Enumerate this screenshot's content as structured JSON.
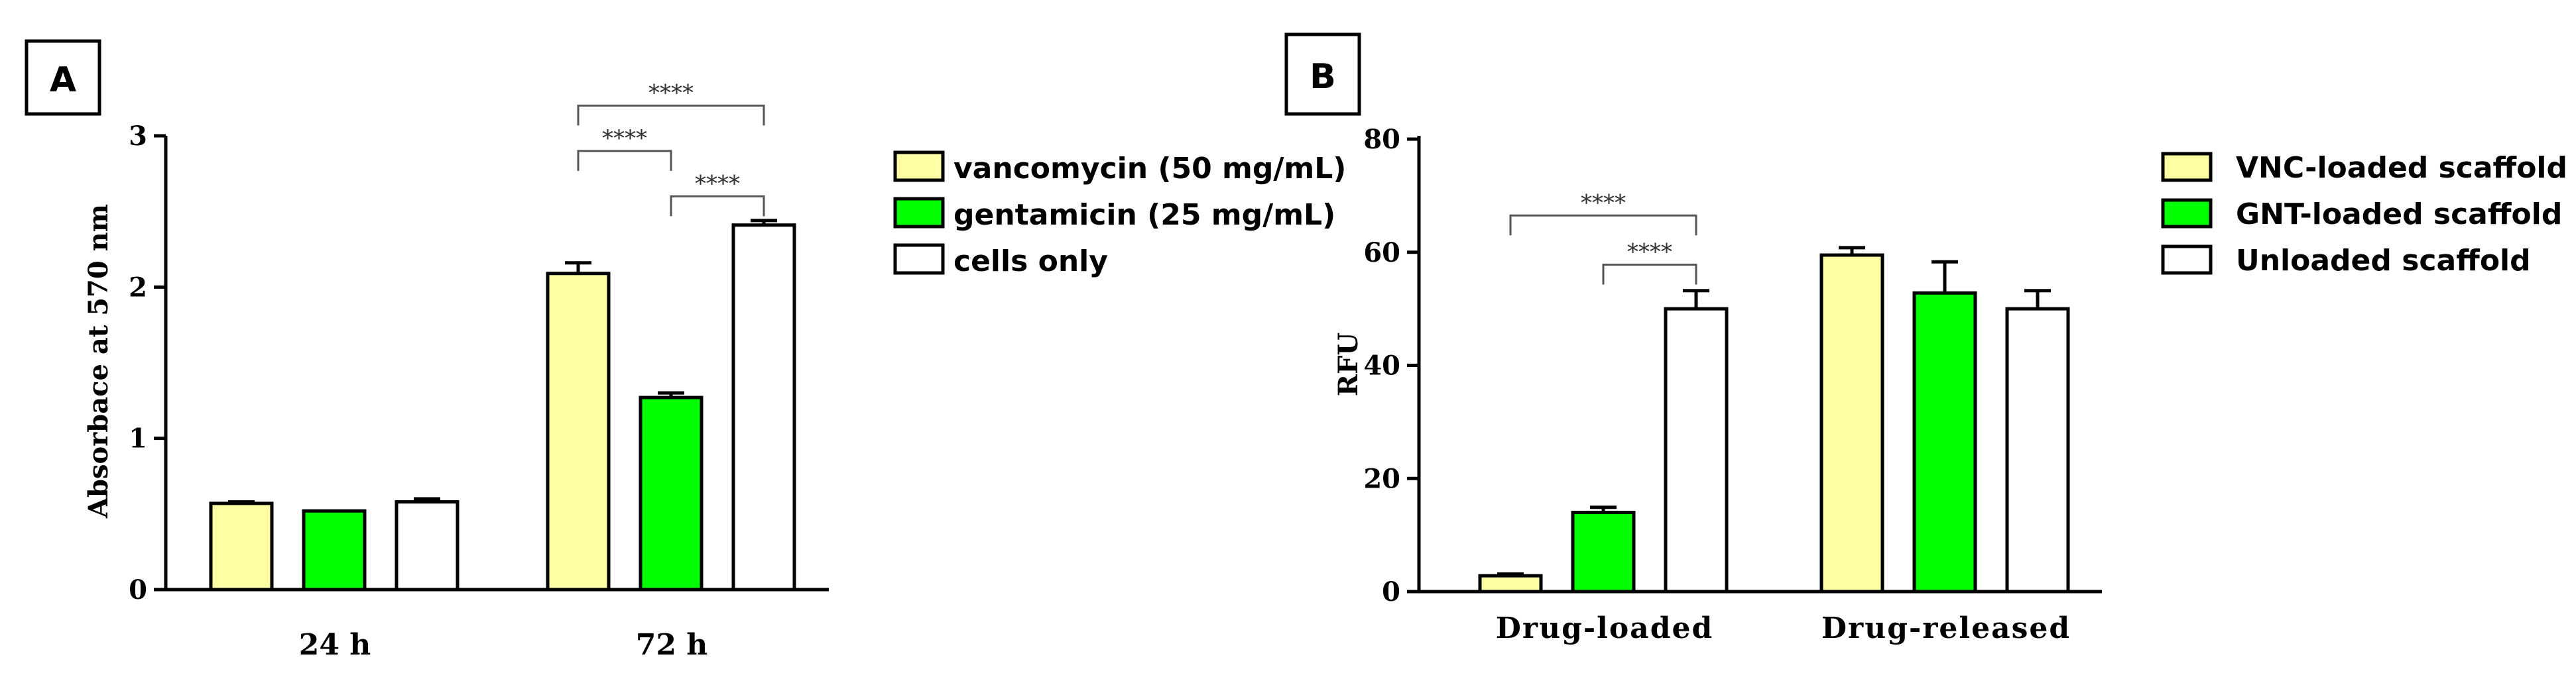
{
  "colors": {
    "yellow": "#FFFFA3",
    "green": "#00FF00",
    "white": "#FFFFFF",
    "stroke": "#000000",
    "bracket": "#555555"
  },
  "chart_data": [
    {
      "type": "bar",
      "panel_label": "A",
      "title": "",
      "xlabel": "",
      "ylabel": "Absorbace at 570 nm",
      "ylim": [
        0,
        3
      ],
      "yticks": [
        "0",
        "1",
        "2",
        "3"
      ],
      "categories": [
        "24 h",
        "72 h"
      ],
      "series": [
        {
          "name": "vancomycin (50 mg/mL)",
          "color": "#FFFFA3",
          "values": [
            0.57,
            2.09
          ],
          "errors": [
            0.01,
            0.07
          ]
        },
        {
          "name": "gentamicin (25 mg/mL)",
          "color": "#00FF00",
          "values": [
            0.52,
            1.27
          ],
          "errors": [
            0.0,
            0.03
          ]
        },
        {
          "name": "cells only",
          "color": "#FFFFFF",
          "values": [
            0.58,
            2.41
          ],
          "errors": [
            0.02,
            0.03
          ]
        }
      ],
      "legend_position": "right",
      "significance": [
        {
          "category": 1,
          "from_series": 0,
          "to_series": 2,
          "label": "****",
          "level": 3.2
        },
        {
          "category": 1,
          "from_series": 0,
          "to_series": 1,
          "label": "****",
          "level": 2.9
        },
        {
          "category": 1,
          "from_series": 1,
          "to_series": 2,
          "label": "****",
          "level": 2.6
        }
      ]
    },
    {
      "type": "bar",
      "panel_label": "B",
      "title": "",
      "xlabel": "",
      "ylabel": "RFU",
      "ylim": [
        0,
        80
      ],
      "yticks": [
        "0",
        "20",
        "40",
        "60",
        "80"
      ],
      "categories": [
        "Drug-loaded",
        "Drug-released"
      ],
      "series": [
        {
          "name": "VNC-loaded scaffold",
          "color": "#FFFFA3",
          "values": [
            2.8,
            59.5
          ],
          "errors": [
            0.3,
            1.3
          ]
        },
        {
          "name": "GNT-loaded scaffold",
          "color": "#00FF00",
          "values": [
            14.0,
            52.8
          ],
          "errors": [
            0.9,
            5.5
          ]
        },
        {
          "name": "Unloaded scaffold",
          "color": "#FFFFFF",
          "values": [
            50.0,
            50.0
          ],
          "errors": [
            3.2,
            3.2
          ]
        }
      ],
      "legend_position": "right",
      "significance": [
        {
          "category": 0,
          "from_series": 0,
          "to_series": 2,
          "label": "****",
          "level": 66.5
        },
        {
          "category": 0,
          "from_series": 1,
          "to_series": 2,
          "label": "****",
          "level": 57.8
        }
      ]
    }
  ]
}
